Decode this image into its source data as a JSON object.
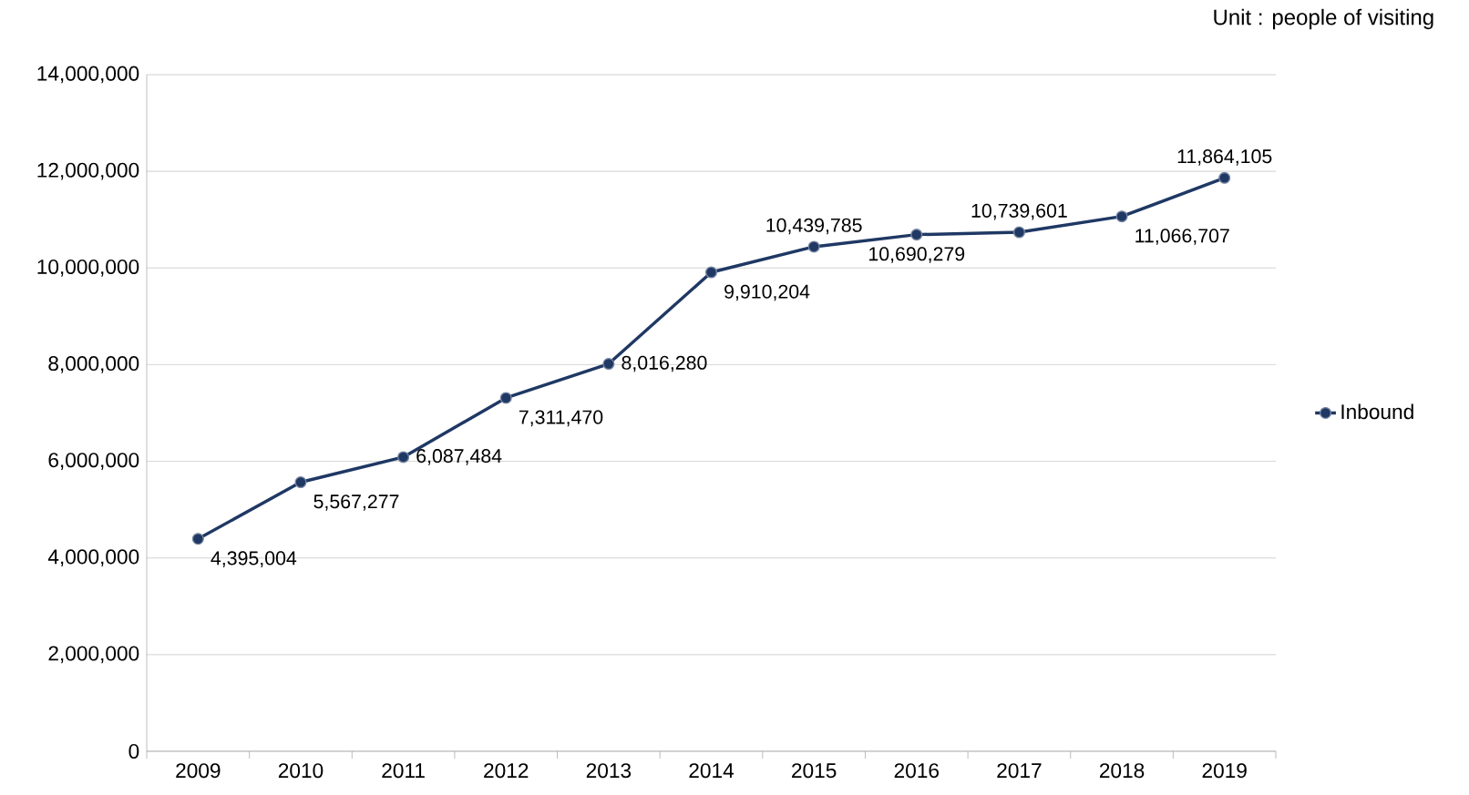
{
  "chart_data": {
    "type": "line",
    "annotations": [
      "Unit : people of visiting"
    ],
    "categories": [
      "2009",
      "2010",
      "2011",
      "2012",
      "2013",
      "2014",
      "2015",
      "2016",
      "2017",
      "2018",
      "2019"
    ],
    "series": [
      {
        "name": "Inbound",
        "color": "#1f3864",
        "values": [
          4395004,
          5567277,
          6087484,
          7311470,
          8016280,
          9910204,
          10439785,
          10690279,
          10739601,
          11066707,
          11864105
        ],
        "value_labels": [
          "4,395,004",
          "5,567,277",
          "6,087,484",
          "7,311,470",
          "8,016,280",
          "9,910,204",
          "10,439,785",
          "10,690,279",
          "10,739,601",
          "11,066,707",
          "11,864,105"
        ]
      }
    ],
    "ylim": [
      0,
      14000000
    ],
    "yticks": [
      {
        "value": 0,
        "label": "0"
      },
      {
        "value": 2000000,
        "label": "2,000,000"
      },
      {
        "value": 4000000,
        "label": "4,000,000"
      },
      {
        "value": 6000000,
        "label": "6,000,000"
      },
      {
        "value": 8000000,
        "label": "8,000,000"
      },
      {
        "value": 10000000,
        "label": "10,000,000"
      },
      {
        "value": 12000000,
        "label": "12,000,000"
      },
      {
        "value": 14000000,
        "label": "14,000,000"
      }
    ],
    "grid": "y",
    "legend": "right",
    "marker": "circle",
    "line_style": "solid"
  }
}
